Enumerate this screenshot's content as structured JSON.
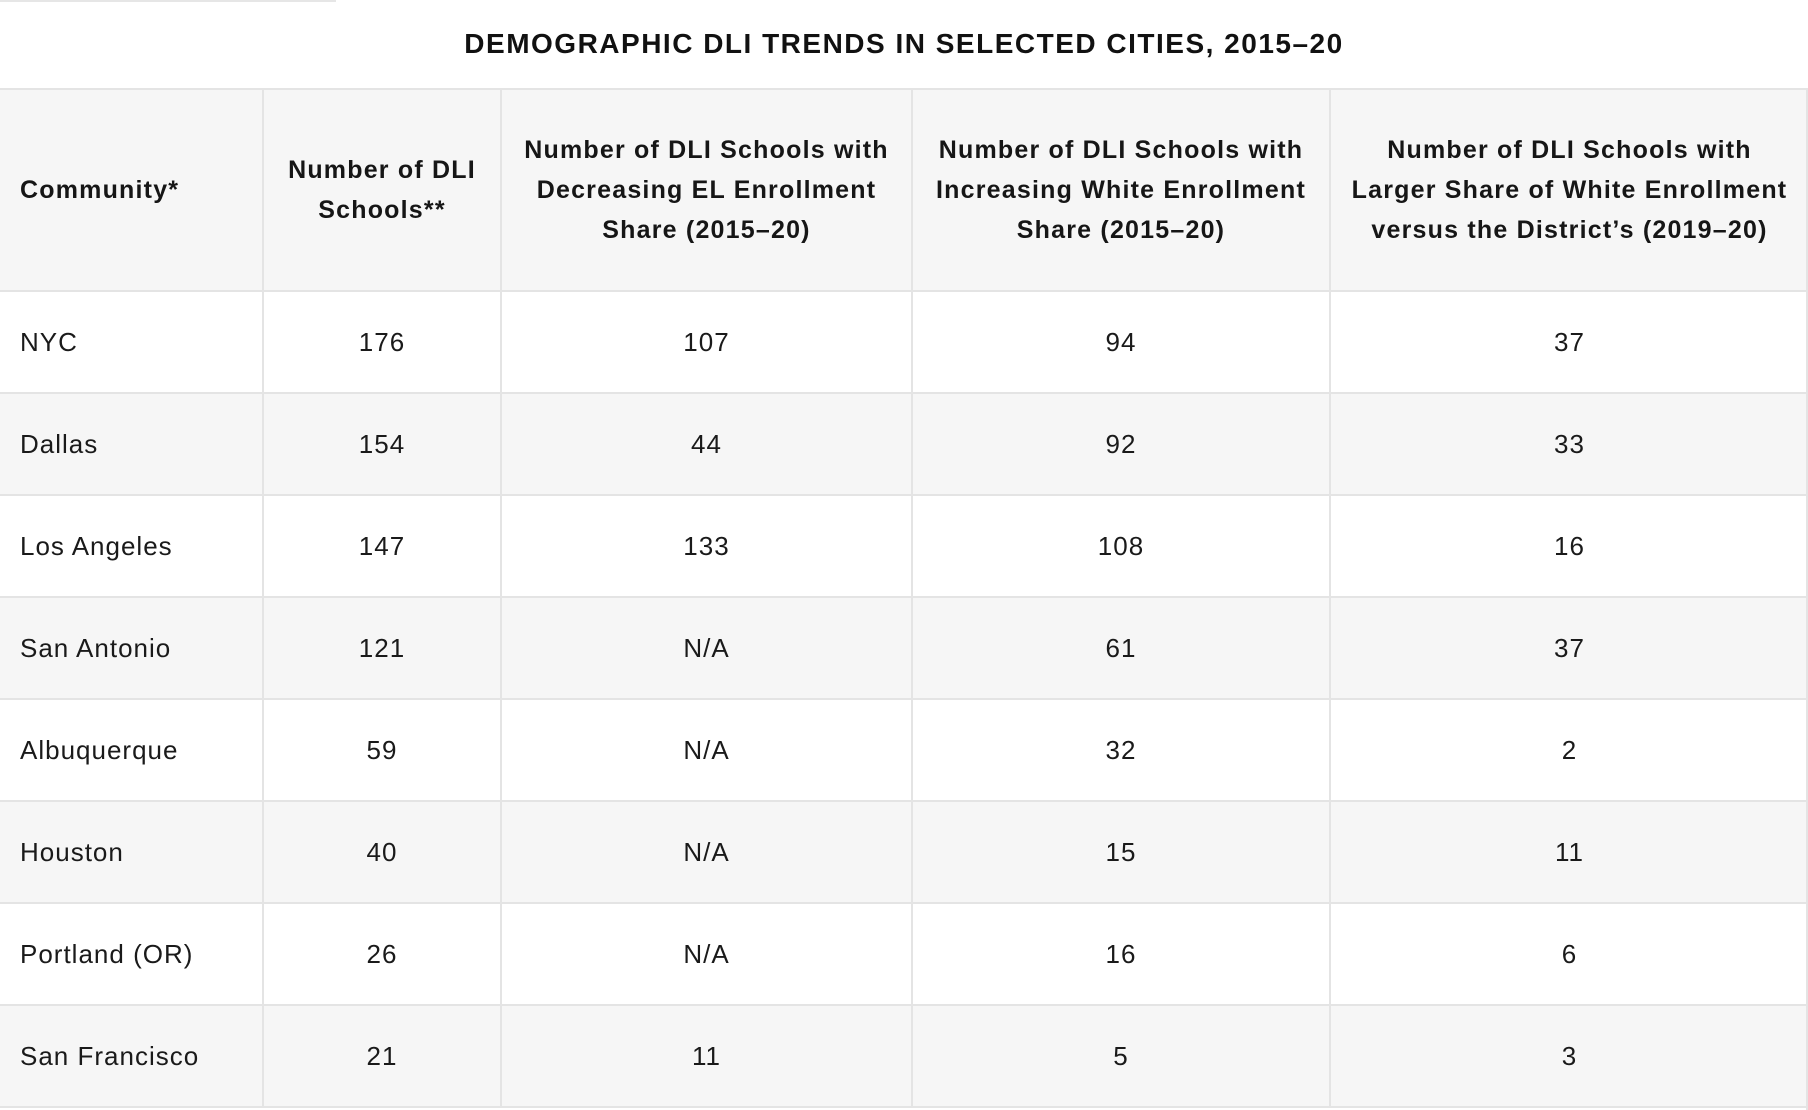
{
  "chart_data": {
    "type": "table",
    "title": "DEMOGRAPHIC DLI TRENDS IN SELECTED CITIES, 2015–20",
    "columns": [
      "Community*",
      "Number of DLI Schools**",
      "Number of DLI Schools with Decreasing EL Enrollment Share (2015–20)",
      "Number of DLI Schools with Increasing White Enrollment Share (2015–20)",
      "Number of DLI Schools with Larger Share of White Enrollment versus the District’s (2019–20)"
    ],
    "rows": [
      [
        "NYC",
        "176",
        "107",
        "94",
        "37"
      ],
      [
        "Dallas",
        "154",
        "44",
        "92",
        "33"
      ],
      [
        "Los Angeles",
        "147",
        "133",
        "108",
        "16"
      ],
      [
        "San Antonio",
        "121",
        "N/A",
        "61",
        "37"
      ],
      [
        "Albuquerque",
        "59",
        "N/A",
        "32",
        "2"
      ],
      [
        "Houston",
        "40",
        "N/A",
        "15",
        "11"
      ],
      [
        "Portland (OR)",
        "26",
        "N/A",
        "16",
        "6"
      ],
      [
        "San Francisco",
        "21",
        "11",
        "5",
        "3"
      ]
    ]
  }
}
